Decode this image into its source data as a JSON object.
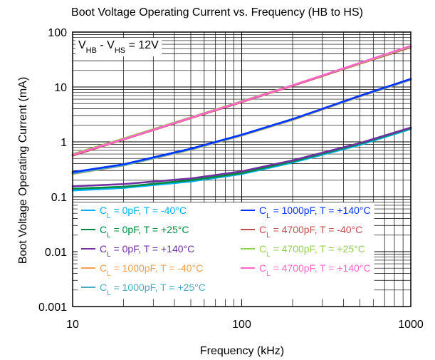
{
  "chart_data": {
    "type": "line",
    "title": "Boot Voltage Operating Current vs. Frequency (HB to HS)",
    "xlabel": "Frequency (kHz)",
    "ylabel": "Boot Voltage Operating Current (mA)",
    "xscale": "log",
    "yscale": "log",
    "xlim": [
      10,
      1000
    ],
    "ylim": [
      0.001,
      100
    ],
    "xticks": [
      {
        "value": 10,
        "label": "10"
      },
      {
        "value": 100,
        "label": "100"
      },
      {
        "value": 1000,
        "label": "1000"
      }
    ],
    "yticks": [
      {
        "value": 0.001,
        "label": "0.001"
      },
      {
        "value": 0.01,
        "label": "0.01"
      },
      {
        "value": 0.1,
        "label": "0.1"
      },
      {
        "value": 1,
        "label": "1"
      },
      {
        "value": 10,
        "label": "10"
      },
      {
        "value": 100,
        "label": "100"
      }
    ],
    "grid": true,
    "annotation": {
      "parts": [
        {
          "text": "V",
          "sub": false
        },
        {
          "text": "HB",
          "sub": true
        },
        {
          "text": " - V",
          "sub": false
        },
        {
          "text": "HS",
          "sub": true
        },
        {
          "text": " = 12V",
          "sub": false
        }
      ]
    },
    "legend": {
      "placement": "bottom"
    },
    "series": [
      {
        "name": "CL = 0pF, T = -40°C",
        "label_main": "C",
        "label_sub": "L",
        "label_rest": " = 0pF, T = -40°C",
        "color": "#00B0F0",
        "x": [
          10,
          20,
          50,
          100,
          200,
          500,
          1000
        ],
        "y": [
          0.13,
          0.145,
          0.19,
          0.26,
          0.42,
          0.88,
          1.72
        ]
      },
      {
        "name": "CL = 0pF, T = +25°C",
        "label_main": "C",
        "label_sub": "L",
        "label_rest": " = 0pF, T = +25°C",
        "color": "#008A3E",
        "x": [
          10,
          20,
          50,
          100,
          200,
          500,
          1000
        ],
        "y": [
          0.14,
          0.152,
          0.2,
          0.27,
          0.44,
          0.92,
          1.78
        ]
      },
      {
        "name": "CL = 0pF, T = +140°C",
        "label_main": "C",
        "label_sub": "L",
        "label_rest": " = 0pF, T = +140°C",
        "color": "#7030A0",
        "x": [
          10,
          20,
          50,
          100,
          200,
          500,
          1000
        ],
        "y": [
          0.155,
          0.17,
          0.215,
          0.29,
          0.46,
          0.95,
          1.82
        ]
      },
      {
        "name": "CL = 1000pF, T = -40°C",
        "label_main": "C",
        "label_sub": "L",
        "label_rest": " = 1000pF, T = -40°C",
        "color": "#F4A050",
        "x": [
          10,
          20,
          50,
          100,
          200,
          500,
          1000
        ],
        "y": [
          0.26,
          0.37,
          0.72,
          1.3,
          2.5,
          6.7,
          13.5
        ]
      },
      {
        "name": "CL = 1000pF, T = +25°C",
        "label_main": "C",
        "label_sub": "L",
        "label_rest": " = 1000pF, T = +25°C",
        "color": "#4BACC6",
        "x": [
          10,
          20,
          50,
          100,
          200,
          500,
          1000
        ],
        "y": [
          0.265,
          0.375,
          0.73,
          1.32,
          2.55,
          6.8,
          13.7
        ]
      },
      {
        "name": "CL = 1000pF, T = +140°C",
        "label_main": "C",
        "label_sub": "L",
        "label_rest": " = 1000pF, T = +140°C",
        "color": "#0033FF",
        "x": [
          10,
          20,
          50,
          100,
          200,
          500,
          1000
        ],
        "y": [
          0.28,
          0.39,
          0.75,
          1.35,
          2.6,
          6.9,
          14
        ]
      },
      {
        "name": "CL = 4700pF, T = -40°C",
        "label_main": "C",
        "label_sub": "L",
        "label_rest": " = 4700pF, T = -40°C",
        "color": "#C0504D",
        "x": [
          10,
          20,
          50,
          100,
          200,
          500,
          1000
        ],
        "y": [
          0.56,
          1.1,
          2.7,
          5.3,
          10.5,
          26.5,
          53
        ]
      },
      {
        "name": "CL = 4700pF, T = +25°C",
        "label_main": "C",
        "label_sub": "L",
        "label_rest": " = 4700pF, T = +25°C",
        "color": "#92D050",
        "x": [
          10,
          20,
          50,
          100,
          200,
          500,
          1000
        ],
        "y": [
          0.6,
          1.15,
          2.8,
          5.5,
          10.8,
          27,
          55
        ]
      },
      {
        "name": "CL = 4700pF, T = +140°C",
        "label_main": "C",
        "label_sub": "L",
        "label_rest": " = 4700pF, T = +140°C",
        "color": "#FF66CC",
        "x": [
          10,
          20,
          50,
          100,
          200,
          500,
          1000
        ],
        "y": [
          0.58,
          1.12,
          2.75,
          5.4,
          10.7,
          27.5,
          56
        ]
      }
    ]
  }
}
